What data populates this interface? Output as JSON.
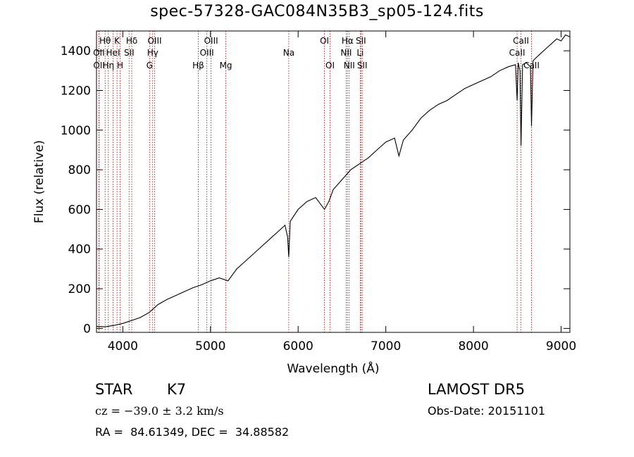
{
  "header": {
    "title": "spec-57328-GAC084N35B3_sp05-124.fits"
  },
  "footer": {
    "class_label": "STAR",
    "subclass": "K7",
    "velocity": "cz = −39.0 ± 3.2 km/s",
    "coords": "RA =  84.61349, DEC =  34.88582",
    "survey": "LAMOST DR5",
    "obs_date": "Obs-Date: 20151101"
  },
  "chart_data": {
    "type": "line",
    "xlabel": "Wavelength (Å)",
    "ylabel": "Flux (relative)",
    "xlim": [
      3700,
      9100
    ],
    "ylim": [
      -20,
      1500
    ],
    "xticks": [
      4000,
      5000,
      6000,
      7000,
      8000,
      9000
    ],
    "yticks": [
      0,
      200,
      400,
      600,
      800,
      1000,
      1200,
      1400
    ],
    "series_color": "#000000",
    "line_color": "#b00000",
    "spectrum": [
      [
        3700,
        10
      ],
      [
        3800,
        8
      ],
      [
        3900,
        15
      ],
      [
        4000,
        25
      ],
      [
        4100,
        40
      ],
      [
        4200,
        55
      ],
      [
        4300,
        80
      ],
      [
        4400,
        120
      ],
      [
        4500,
        145
      ],
      [
        4600,
        165
      ],
      [
        4700,
        185
      ],
      [
        4800,
        205
      ],
      [
        4900,
        220
      ],
      [
        5000,
        240
      ],
      [
        5100,
        255
      ],
      [
        5200,
        240
      ],
      [
        5300,
        300
      ],
      [
        5400,
        340
      ],
      [
        5500,
        380
      ],
      [
        5600,
        420
      ],
      [
        5700,
        460
      ],
      [
        5800,
        500
      ],
      [
        5850,
        520
      ],
      [
        5880,
        460
      ],
      [
        5893,
        360
      ],
      [
        5910,
        540
      ],
      [
        6000,
        600
      ],
      [
        6100,
        640
      ],
      [
        6200,
        660
      ],
      [
        6300,
        600
      ],
      [
        6350,
        640
      ],
      [
        6400,
        700
      ],
      [
        6500,
        750
      ],
      [
        6600,
        800
      ],
      [
        6700,
        830
      ],
      [
        6800,
        860
      ],
      [
        6900,
        900
      ],
      [
        7000,
        940
      ],
      [
        7100,
        960
      ],
      [
        7150,
        870
      ],
      [
        7200,
        950
      ],
      [
        7300,
        1000
      ],
      [
        7400,
        1060
      ],
      [
        7500,
        1100
      ],
      [
        7600,
        1130
      ],
      [
        7700,
        1150
      ],
      [
        7800,
        1180
      ],
      [
        7900,
        1210
      ],
      [
        8000,
        1230
      ],
      [
        8100,
        1250
      ],
      [
        8200,
        1270
      ],
      [
        8300,
        1300
      ],
      [
        8400,
        1320
      ],
      [
        8480,
        1330
      ],
      [
        8498,
        1150
      ],
      [
        8510,
        1340
      ],
      [
        8530,
        1300
      ],
      [
        8542,
        920
      ],
      [
        8560,
        1330
      ],
      [
        8600,
        1340
      ],
      [
        8650,
        1320
      ],
      [
        8662,
        1020
      ],
      [
        8680,
        1350
      ],
      [
        8750,
        1380
      ],
      [
        8850,
        1420
      ],
      [
        8950,
        1460
      ],
      [
        9000,
        1450
      ],
      [
        9050,
        1480
      ],
      [
        9100,
        1470
      ]
    ],
    "lines": [
      {
        "label": "Hθ",
        "x": 3798,
        "row": 0
      },
      {
        "label": "OII",
        "x": 3727,
        "row": 1
      },
      {
        "label": "OII",
        "x": 3729,
        "row": 2
      },
      {
        "label": "Hη",
        "x": 3835,
        "row": 2
      },
      {
        "label": "HeI",
        "x": 3889,
        "row": 1
      },
      {
        "label": "K",
        "x": 3934,
        "row": 0
      },
      {
        "label": "H",
        "x": 3969,
        "row": 2
      },
      {
        "label": "SII",
        "x": 4072,
        "row": 1
      },
      {
        "label": "Hδ",
        "x": 4102,
        "row": 0
      },
      {
        "label": "OIII",
        "x": 4363,
        "row": 0
      },
      {
        "label": "Hγ",
        "x": 4341,
        "row": 1
      },
      {
        "label": "G",
        "x": 4305,
        "row": 2
      },
      {
        "label": "Hβ",
        "x": 4861,
        "row": 2
      },
      {
        "label": "OIII",
        "x": 4959,
        "row": 1
      },
      {
        "label": "OIII",
        "x": 5007,
        "row": 0
      },
      {
        "label": "Mg",
        "x": 5175,
        "row": 2
      },
      {
        "label": "Na",
        "x": 5893,
        "row": 1
      },
      {
        "label": "OI",
        "x": 6300,
        "row": 0
      },
      {
        "label": "OI",
        "x": 6364,
        "row": 2
      },
      {
        "label": "Hα",
        "x": 6563,
        "row": 0
      },
      {
        "label": "NII",
        "x": 6548,
        "row": 1
      },
      {
        "label": "NII",
        "x": 6583,
        "row": 2
      },
      {
        "label": "SII",
        "x": 6716,
        "row": 0
      },
      {
        "label": "Li",
        "x": 6708,
        "row": 1
      },
      {
        "label": "SII",
        "x": 6731,
        "row": 2
      },
      {
        "label": "CaII",
        "x": 8542,
        "row": 0
      },
      {
        "label": "CaII",
        "x": 8498,
        "row": 1
      },
      {
        "label": "CaII",
        "x": 8662,
        "row": 2
      }
    ]
  }
}
